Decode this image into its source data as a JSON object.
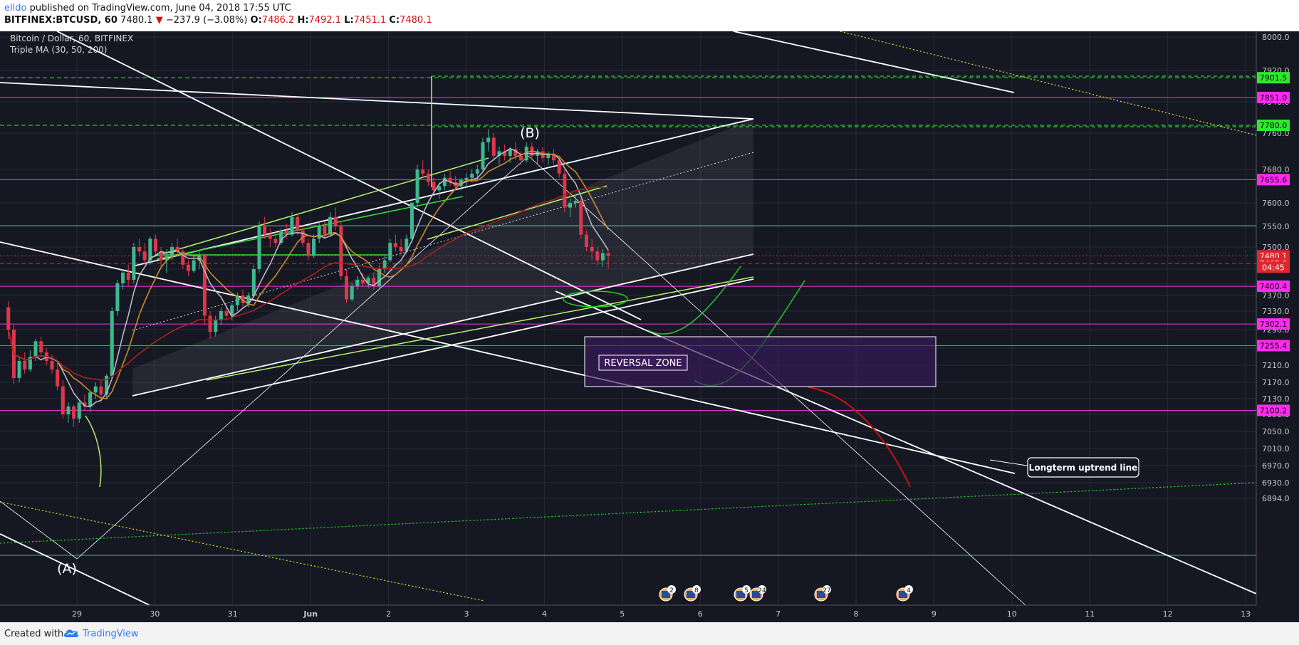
{
  "header": {
    "author": "elldo",
    "published_text": "published on TradingView.com, June 04, 2018 17:55 UTC",
    "symbol": "BITFINEX:BTCUSD, 60",
    "last": "7480.1",
    "change_arrow": "▼",
    "change": "−237.9 (−3.08%)",
    "open_label": "O:",
    "open": "7486.2",
    "high_label": "H:",
    "high": "7492.1",
    "low_label": "L:",
    "low": "7451.1",
    "close_label": "C:",
    "close": "7480.1"
  },
  "footer": {
    "created_with": "Created with",
    "brand": "TradingView"
  },
  "colors": {
    "background": "#151823",
    "up_candle": "#3fb88e",
    "down_candle": "#e0364b",
    "ma_fast": "#b8b8c8",
    "ma_mid": "#c98a2e",
    "ma_slow": "#a82020",
    "magenta": "#ff2cf0",
    "green_label": "#2eea2e"
  },
  "chart_data": {
    "type": "candlestick",
    "title": "Bitcoin / Dollar, 60, BITFINEX",
    "indicator": "Triple MA (30, 50, 200)",
    "y_range": [
      6894,
      8020
    ],
    "y_ticks": [
      8000,
      7920,
      7840,
      7760,
      7680,
      7600,
      7550,
      7500,
      7450,
      7410,
      7370,
      7330,
      7290,
      7250,
      7210,
      7170,
      7130,
      7090,
      7050,
      7010,
      6970,
      6930,
      6894
    ],
    "y_tick_labels": [
      "8000.0",
      "7920.0",
      "7840.0",
      "7760.0",
      "7680.0",
      "7600.0",
      "7550.0",
      "7500.0",
      "7450.0",
      "7410.0",
      "7370.0",
      "7330.0",
      "7290.0",
      "7250.0",
      "7210.0",
      "7170.0",
      "7130.0",
      "7090.0",
      "7050.0",
      "7010.0",
      "6970.0",
      "6930.0",
      "6894.0"
    ],
    "x_ticks": [
      {
        "t": 29,
        "label": "29"
      },
      {
        "t": 30,
        "label": "30"
      },
      {
        "t": 31,
        "label": "31"
      },
      {
        "t": 32,
        "label": "Jun"
      },
      {
        "t": 33,
        "label": "2"
      },
      {
        "t": 34,
        "label": "3"
      },
      {
        "t": 35,
        "label": "4"
      },
      {
        "t": 36,
        "label": "5"
      },
      {
        "t": 37,
        "label": "6"
      },
      {
        "t": 38,
        "label": "7"
      },
      {
        "t": 39,
        "label": "8"
      },
      {
        "t": 40,
        "label": "9"
      },
      {
        "t": 41,
        "label": "10"
      },
      {
        "t": 42,
        "label": "11"
      },
      {
        "t": 43,
        "label": "12"
      },
      {
        "t": 44,
        "label": "13"
      }
    ],
    "x_range": [
      28.07,
      44.1
    ],
    "price_levels": [
      {
        "value": 7901.5,
        "label": "7901.5",
        "color": "#2eea2e",
        "text_color": "#000000",
        "line": "dashed-green"
      },
      {
        "value": 7851.0,
        "label": "7851.0",
        "color": "#ff2cf0",
        "text_color": "#000000",
        "line": "solid-magenta"
      },
      {
        "value": 7780.0,
        "label": "7780.0",
        "color": "#2eea2e",
        "text_color": "#000000",
        "line": "dashed-green"
      },
      {
        "value": 7655.6,
        "label": "7655.6",
        "color": "#ff2cf0",
        "text_color": "#000000",
        "line": "solid-magenta"
      },
      {
        "value": 7480.1,
        "label": "7480.1",
        "color": "#e0262e",
        "text_color": "#ffffff",
        "line": "dotted-red"
      },
      {
        "value": 7463.0,
        "label": "7463.0",
        "color": "#e0262e",
        "text_color": "#ffffff",
        "line": "dashed-red"
      },
      {
        "value": 7400.4,
        "label": "7400.4",
        "color": "#ff2cf0",
        "text_color": "#000000",
        "line": "solid-magenta"
      },
      {
        "value": 7302.1,
        "label": "7302.1",
        "color": "#ff2cf0",
        "text_color": "#000000",
        "line": "solid-magenta"
      },
      {
        "value": 7255.4,
        "label": "7255.4",
        "color": "#ff2cf0",
        "text_color": "#000000",
        "line": "solid-magenta"
      },
      {
        "value": 7100.2,
        "label": "7100.2",
        "color": "#ff2cf0",
        "text_color": "#000000",
        "line": "solid-magenta"
      }
    ],
    "countdown": "04:45",
    "annotations": {
      "wave_a": "(A)",
      "wave_b": "(B)",
      "reversal_zone": "REVERSAL ZONE",
      "callout": "Longterm uptrend line"
    },
    "event_badges": [
      "2",
      "8",
      "5",
      "24",
      "27",
      "4"
    ],
    "candles": [
      [
        28.12,
        7340,
        7355,
        7270,
        7290
      ],
      [
        28.19,
        7290,
        7300,
        7165,
        7180
      ],
      [
        28.26,
        7180,
        7230,
        7170,
        7220
      ],
      [
        28.33,
        7220,
        7240,
        7190,
        7200
      ],
      [
        28.4,
        7200,
        7245,
        7195,
        7230
      ],
      [
        28.47,
        7230,
        7270,
        7220,
        7265
      ],
      [
        28.54,
        7265,
        7275,
        7230,
        7240
      ],
      [
        28.61,
        7240,
        7250,
        7210,
        7220
      ],
      [
        28.68,
        7220,
        7235,
        7190,
        7200
      ],
      [
        28.75,
        7200,
        7215,
        7150,
        7160
      ],
      [
        28.82,
        7160,
        7175,
        7080,
        7090
      ],
      [
        28.89,
        7090,
        7120,
        7070,
        7110
      ],
      [
        28.96,
        7110,
        7115,
        7060,
        7080
      ],
      [
        29.03,
        7080,
        7125,
        7070,
        7120
      ],
      [
        29.1,
        7120,
        7140,
        7100,
        7110
      ],
      [
        29.17,
        7110,
        7150,
        7095,
        7145
      ],
      [
        29.24,
        7145,
        7170,
        7130,
        7160
      ],
      [
        29.31,
        7160,
        7175,
        7120,
        7140
      ],
      [
        29.38,
        7140,
        7190,
        7130,
        7185
      ],
      [
        29.45,
        7185,
        7340,
        7180,
        7330
      ],
      [
        29.52,
        7330,
        7420,
        7320,
        7410
      ],
      [
        29.59,
        7410,
        7450,
        7390,
        7440
      ],
      [
        29.66,
        7440,
        7460,
        7400,
        7420
      ],
      [
        29.73,
        7420,
        7510,
        7410,
        7500
      ],
      [
        29.8,
        7500,
        7520,
        7480,
        7490
      ],
      [
        29.87,
        7490,
        7510,
        7460,
        7470
      ],
      [
        29.94,
        7470,
        7525,
        7460,
        7520
      ],
      [
        30.01,
        7520,
        7530,
        7480,
        7490
      ],
      [
        30.08,
        7490,
        7500,
        7450,
        7470
      ],
      [
        30.15,
        7470,
        7495,
        7440,
        7480
      ],
      [
        30.22,
        7480,
        7510,
        7470,
        7500
      ],
      [
        30.29,
        7500,
        7520,
        7480,
        7490
      ],
      [
        30.36,
        7490,
        7495,
        7450,
        7460
      ],
      [
        30.43,
        7460,
        7470,
        7430,
        7445
      ],
      [
        30.5,
        7445,
        7480,
        7440,
        7470
      ],
      [
        30.57,
        7470,
        7490,
        7450,
        7480
      ],
      [
        30.64,
        7480,
        7485,
        7300,
        7320
      ],
      [
        30.71,
        7320,
        7330,
        7270,
        7285
      ],
      [
        30.78,
        7285,
        7320,
        7275,
        7310
      ],
      [
        30.85,
        7310,
        7340,
        7300,
        7330
      ],
      [
        30.92,
        7330,
        7345,
        7310,
        7320
      ],
      [
        30.99,
        7320,
        7350,
        7310,
        7345
      ],
      [
        31.06,
        7345,
        7380,
        7330,
        7370
      ],
      [
        31.13,
        7370,
        7390,
        7340,
        7350
      ],
      [
        31.2,
        7350,
        7380,
        7340,
        7370
      ],
      [
        31.27,
        7370,
        7460,
        7365,
        7450
      ],
      [
        31.34,
        7450,
        7560,
        7440,
        7550
      ],
      [
        31.41,
        7550,
        7570,
        7520,
        7530
      ],
      [
        31.48,
        7530,
        7545,
        7500,
        7520
      ],
      [
        31.55,
        7520,
        7540,
        7500,
        7510
      ],
      [
        31.62,
        7510,
        7545,
        7505,
        7540
      ],
      [
        31.69,
        7540,
        7555,
        7520,
        7530
      ],
      [
        31.76,
        7530,
        7580,
        7525,
        7570
      ],
      [
        31.83,
        7570,
        7575,
        7530,
        7540
      ],
      [
        31.9,
        7540,
        7550,
        7500,
        7510
      ],
      [
        31.97,
        7510,
        7520,
        7470,
        7480
      ],
      [
        32.04,
        7480,
        7530,
        7475,
        7520
      ],
      [
        32.11,
        7520,
        7560,
        7510,
        7550
      ],
      [
        32.18,
        7550,
        7560,
        7520,
        7530
      ],
      [
        32.25,
        7530,
        7580,
        7525,
        7570
      ],
      [
        32.32,
        7570,
        7590,
        7540,
        7550
      ],
      [
        32.39,
        7550,
        7560,
        7420,
        7430
      ],
      [
        32.46,
        7430,
        7450,
        7350,
        7360
      ],
      [
        32.53,
        7360,
        7410,
        7355,
        7400
      ],
      [
        32.6,
        7400,
        7430,
        7390,
        7420
      ],
      [
        32.67,
        7420,
        7440,
        7400,
        7410
      ],
      [
        32.74,
        7410,
        7430,
        7395,
        7425
      ],
      [
        32.81,
        7425,
        7440,
        7390,
        7400
      ],
      [
        32.88,
        7400,
        7460,
        7395,
        7450
      ],
      [
        32.95,
        7450,
        7480,
        7440,
        7470
      ],
      [
        33.02,
        7470,
        7520,
        7465,
        7510
      ],
      [
        33.09,
        7510,
        7530,
        7490,
        7500
      ],
      [
        33.16,
        7500,
        7520,
        7480,
        7490
      ],
      [
        33.23,
        7490,
        7530,
        7485,
        7520
      ],
      [
        33.3,
        7520,
        7610,
        7515,
        7600
      ],
      [
        33.37,
        7600,
        7690,
        7590,
        7680
      ],
      [
        33.44,
        7680,
        7700,
        7660,
        7670
      ],
      [
        33.51,
        7670,
        7680,
        7640,
        7650
      ],
      [
        33.58,
        7650,
        7660,
        7620,
        7630
      ],
      [
        33.65,
        7630,
        7650,
        7610,
        7640
      ],
      [
        33.72,
        7640,
        7670,
        7630,
        7660
      ],
      [
        33.79,
        7660,
        7680,
        7640,
        7650
      ],
      [
        33.86,
        7650,
        7665,
        7630,
        7640
      ],
      [
        33.93,
        7640,
        7660,
        7630,
        7655
      ],
      [
        34.0,
        7655,
        7670,
        7640,
        7660
      ],
      [
        34.07,
        7660,
        7680,
        7650,
        7670
      ],
      [
        34.14,
        7670,
        7690,
        7655,
        7680
      ],
      [
        34.21,
        7680,
        7750,
        7675,
        7740
      ],
      [
        34.28,
        7740,
        7770,
        7720,
        7750
      ],
      [
        34.35,
        7750,
        7760,
        7700,
        7710
      ],
      [
        34.42,
        7710,
        7730,
        7690,
        7720
      ],
      [
        34.49,
        7720,
        7735,
        7700,
        7710
      ],
      [
        34.56,
        7710,
        7730,
        7695,
        7725
      ],
      [
        34.63,
        7725,
        7740,
        7700,
        7710
      ],
      [
        34.7,
        7710,
        7720,
        7690,
        7700
      ],
      [
        34.77,
        7700,
        7740,
        7695,
        7730
      ],
      [
        34.84,
        7730,
        7740,
        7700,
        7710
      ],
      [
        34.91,
        7710,
        7725,
        7690,
        7720
      ],
      [
        34.98,
        7720,
        7730,
        7695,
        7705
      ],
      [
        35.05,
        7705,
        7720,
        7690,
        7715
      ],
      [
        35.12,
        7715,
        7725,
        7690,
        7700
      ],
      [
        35.19,
        7700,
        7710,
        7660,
        7670
      ],
      [
        35.26,
        7670,
        7680,
        7580,
        7590
      ],
      [
        35.33,
        7590,
        7610,
        7570,
        7600
      ],
      [
        35.4,
        7600,
        7620,
        7590,
        7605
      ],
      [
        35.47,
        7605,
        7610,
        7520,
        7530
      ],
      [
        35.54,
        7530,
        7540,
        7490,
        7500
      ],
      [
        35.61,
        7500,
        7520,
        7470,
        7490
      ],
      [
        35.68,
        7490,
        7500,
        7460,
        7470
      ],
      [
        35.75,
        7470,
        7495,
        7455,
        7486
      ],
      [
        35.82,
        7486.2,
        7492.1,
        7451.1,
        7480.1
      ]
    ]
  }
}
